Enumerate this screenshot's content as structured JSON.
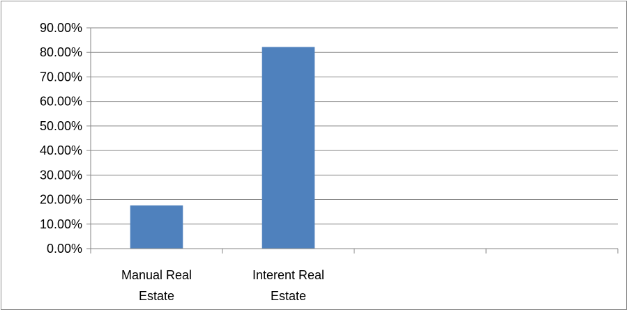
{
  "chart_data": {
    "type": "bar",
    "categories": [
      [
        "Manual Real",
        "Estate"
      ],
      [
        "Interent Real",
        "Estate"
      ],
      [
        ""
      ],
      [
        ""
      ]
    ],
    "values": [
      17.6,
      82.2,
      null,
      null
    ],
    "ylim": [
      0,
      90
    ],
    "ytick_step": 10,
    "ytick_labels": [
      "0.00%",
      "10.00%",
      "20.00%",
      "30.00%",
      "40.00%",
      "50.00%",
      "60.00%",
      "70.00%",
      "80.00%",
      "90.00%"
    ],
    "grid": true,
    "legend": "none",
    "bar_color": "#4f81bd",
    "grid_color": "#868686",
    "axis_color": "#868686"
  }
}
